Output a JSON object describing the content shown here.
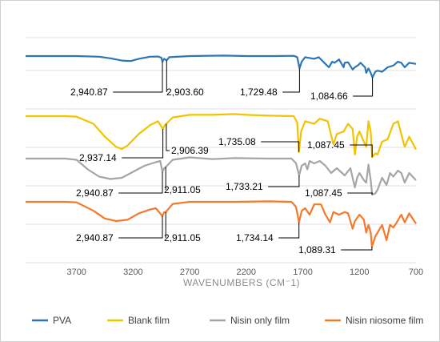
{
  "chart_data": {
    "type": "line",
    "xlabel": "WAVENUMBERS (CM⁻1)",
    "ylabel": "",
    "xlim": [
      4150,
      700
    ],
    "x_reversed": true,
    "x_ticks": [
      3700,
      3200,
      2700,
      2200,
      1700,
      1200,
      700
    ],
    "grid": "horizontal",
    "legend_position": "bottom",
    "series": [
      {
        "name": "PVA",
        "color": "#2E75B6",
        "points": [
          [
            4150,
            0
          ],
          [
            3700,
            0
          ],
          [
            3500,
            0.03
          ],
          [
            3400,
            0.1
          ],
          [
            3300,
            0.2
          ],
          [
            3220,
            0.22
          ],
          [
            3150,
            0.12
          ],
          [
            3050,
            0.03
          ],
          [
            2980,
            0.02
          ],
          [
            2950,
            0.07
          ],
          [
            2940.87,
            0.25
          ],
          [
            2925,
            0.12
          ],
          [
            2903.6,
            0.19
          ],
          [
            2880,
            0.05
          ],
          [
            2700,
            0.0
          ],
          [
            2400,
            -0.02
          ],
          [
            2200,
            0.0
          ],
          [
            1950,
            0.0
          ],
          [
            1780,
            -0.01
          ],
          [
            1750,
            0.05
          ],
          [
            1729.48,
            0.55
          ],
          [
            1710,
            0.25
          ],
          [
            1680,
            0.05
          ],
          [
            1600,
            0.12
          ],
          [
            1560,
            0.05
          ],
          [
            1500,
            0.35
          ],
          [
            1470,
            0.5
          ],
          [
            1440,
            0.25
          ],
          [
            1420,
            0.3
          ],
          [
            1380,
            0.15
          ],
          [
            1340,
            0.5
          ],
          [
            1330,
            0.3
          ],
          [
            1300,
            0.28
          ],
          [
            1260,
            0.6
          ],
          [
            1240,
            0.5
          ],
          [
            1210,
            0.4
          ],
          [
            1190,
            0.3
          ],
          [
            1150,
            0.5
          ],
          [
            1140,
            0.75
          ],
          [
            1120,
            0.55
          ],
          [
            1100,
            0.75
          ],
          [
            1084.66,
            0.95
          ],
          [
            1060,
            0.7
          ],
          [
            1040,
            0.65
          ],
          [
            1000,
            0.7
          ],
          [
            950,
            0.5
          ],
          [
            900,
            0.42
          ],
          [
            860,
            0.25
          ],
          [
            830,
            0.3
          ],
          [
            800,
            0.5
          ],
          [
            760,
            0.3
          ],
          [
            700,
            0.35
          ]
        ],
        "annotations": [
          {
            "text": "2,940.87",
            "x": 2940.87
          },
          {
            "text": "2,903.60",
            "x": 2903.6
          },
          {
            "text": "1,729.48",
            "x": 1729.48
          },
          {
            "text": "1,084.66",
            "x": 1084.66
          }
        ]
      },
      {
        "name": "Blank film",
        "color": "#F2C300",
        "points": [
          [
            4150,
            0
          ],
          [
            3800,
            0
          ],
          [
            3700,
            0.02
          ],
          [
            3550,
            0.3
          ],
          [
            3450,
            0.8
          ],
          [
            3350,
            1.2
          ],
          [
            3300,
            1.28
          ],
          [
            3250,
            1.15
          ],
          [
            3150,
            0.7
          ],
          [
            3050,
            0.35
          ],
          [
            2980,
            0.2
          ],
          [
            2937.14,
            0.5
          ],
          [
            2920,
            0.35
          ],
          [
            2906.39,
            0.3
          ],
          [
            2850,
            0.05
          ],
          [
            2700,
            -0.05
          ],
          [
            2500,
            -0.05
          ],
          [
            2300,
            -0.08
          ],
          [
            2200,
            -0.05
          ],
          [
            2000,
            -0.02
          ],
          [
            1780,
            0.0
          ],
          [
            1750,
            0.25
          ],
          [
            1735.08,
            1.4
          ],
          [
            1715,
            0.6
          ],
          [
            1680,
            0.2
          ],
          [
            1600,
            0.3
          ],
          [
            1550,
            0.1
          ],
          [
            1480,
            0.2
          ],
          [
            1430,
            1.1
          ],
          [
            1400,
            0.7
          ],
          [
            1340,
            0.6
          ],
          [
            1300,
            0.3
          ],
          [
            1260,
            0.5
          ],
          [
            1240,
            1.5
          ],
          [
            1220,
            0.8
          ],
          [
            1200,
            0.6
          ],
          [
            1160,
            1.0
          ],
          [
            1140,
            1.2
          ],
          [
            1120,
            0.2
          ],
          [
            1100,
            0.6
          ],
          [
            1087.45,
            1.6
          ],
          [
            1060,
            1.45
          ],
          [
            1040,
            1.5
          ],
          [
            1000,
            1.0
          ],
          [
            950,
            0.9
          ],
          [
            900,
            0.3
          ],
          [
            860,
            0.2
          ],
          [
            830,
            0.7
          ],
          [
            800,
            1.2
          ],
          [
            760,
            0.8
          ],
          [
            700,
            1.3
          ]
        ],
        "annotations": [
          {
            "text": "2,937.14",
            "x": 2937.14
          },
          {
            "text": "2,906.39",
            "x": 2906.39
          },
          {
            "text": "1,735.08",
            "x": 1735.08
          },
          {
            "text": "1,087.45",
            "x": 1087.45
          }
        ]
      },
      {
        "name": "Nisin only film",
        "color": "#A5A5A5",
        "points": [
          [
            4150,
            0
          ],
          [
            3800,
            0
          ],
          [
            3700,
            0.05
          ],
          [
            3600,
            0.45
          ],
          [
            3500,
            0.75
          ],
          [
            3400,
            0.85
          ],
          [
            3300,
            0.8
          ],
          [
            3200,
            0.55
          ],
          [
            3100,
            0.3
          ],
          [
            3000,
            0.15
          ],
          [
            2960,
            0.1
          ],
          [
            2940.87,
            0.55
          ],
          [
            2925,
            0.4
          ],
          [
            2911.05,
            0.35
          ],
          [
            2850,
            0.05
          ],
          [
            2700,
            -0.05
          ],
          [
            2500,
            0.02
          ],
          [
            2300,
            -0.02
          ],
          [
            2000,
            0.0
          ],
          [
            1800,
            0.0
          ],
          [
            1760,
            0.2
          ],
          [
            1733.21,
            0.7
          ],
          [
            1710,
            0.3
          ],
          [
            1680,
            0.2
          ],
          [
            1660,
            0.45
          ],
          [
            1640,
            0.1
          ],
          [
            1600,
            0.2
          ],
          [
            1550,
            0.1
          ],
          [
            1500,
            0.3
          ],
          [
            1450,
            0.6
          ],
          [
            1400,
            0.4
          ],
          [
            1330,
            0.7
          ],
          [
            1280,
            0.4
          ],
          [
            1240,
            1.2
          ],
          [
            1220,
            0.8
          ],
          [
            1200,
            0.6
          ],
          [
            1160,
            0.9
          ],
          [
            1140,
            1.0
          ],
          [
            1120,
            0.25
          ],
          [
            1100,
            0.9
          ],
          [
            1087.45,
            1.5
          ],
          [
            1060,
            1.45
          ],
          [
            1040,
            1.3
          ],
          [
            1000,
            0.8
          ],
          [
            960,
            1.1
          ],
          [
            930,
            0.6
          ],
          [
            900,
            0.75
          ],
          [
            860,
            0.5
          ],
          [
            830,
            0.6
          ],
          [
            800,
            1.0
          ],
          [
            760,
            0.6
          ],
          [
            700,
            0.9
          ]
        ],
        "annotations": [
          {
            "text": "2,940.87",
            "x": 2940.87
          },
          {
            "text": "2,911.05",
            "x": 2911.05
          },
          {
            "text": "1,733.21",
            "x": 1733.21
          },
          {
            "text": "1,087.45",
            "x": 1087.45
          }
        ]
      },
      {
        "name": "Nisin niosome film",
        "color": "#F4792B",
        "points": [
          [
            4150,
            0
          ],
          [
            3800,
            0
          ],
          [
            3700,
            0.02
          ],
          [
            3550,
            0.35
          ],
          [
            3450,
            0.65
          ],
          [
            3350,
            0.75
          ],
          [
            3250,
            0.7
          ],
          [
            3150,
            0.45
          ],
          [
            3050,
            0.3
          ],
          [
            3000,
            0.25
          ],
          [
            2940.87,
            0.55
          ],
          [
            2925,
            0.4
          ],
          [
            2911.05,
            0.4
          ],
          [
            2850,
            0.08
          ],
          [
            2700,
            0.0
          ],
          [
            2500,
            0.0
          ],
          [
            2300,
            0.0
          ],
          [
            2000,
            -0.02
          ],
          [
            1800,
            0.0
          ],
          [
            1760,
            0.2
          ],
          [
            1734.14,
            0.8
          ],
          [
            1710,
            0.35
          ],
          [
            1680,
            0.25
          ],
          [
            1640,
            0.5
          ],
          [
            1600,
            0.1
          ],
          [
            1540,
            0.1
          ],
          [
            1500,
            0.5
          ],
          [
            1460,
            0.8
          ],
          [
            1430,
            0.4
          ],
          [
            1380,
            0.5
          ],
          [
            1330,
            0.4
          ],
          [
            1300,
            0.45
          ],
          [
            1260,
            1.05
          ],
          [
            1240,
            0.75
          ],
          [
            1200,
            0.5
          ],
          [
            1160,
            0.7
          ],
          [
            1140,
            1.2
          ],
          [
            1120,
            0.9
          ],
          [
            1100,
            1.2
          ],
          [
            1089.31,
            1.75
          ],
          [
            1060,
            1.35
          ],
          [
            1040,
            1.2
          ],
          [
            1000,
            0.9
          ],
          [
            960,
            1.5
          ],
          [
            930,
            0.9
          ],
          [
            900,
            1.0
          ],
          [
            870,
            0.8
          ],
          [
            830,
            0.5
          ],
          [
            800,
            0.8
          ],
          [
            760,
            0.45
          ],
          [
            700,
            0.85
          ]
        ],
        "annotations": [
          {
            "text": "2,940.87",
            "x": 2940.87
          },
          {
            "text": "2,911.05",
            "x": 2911.05
          },
          {
            "text": "1,734.14",
            "x": 1734.14
          },
          {
            "text": "1,089.31",
            "x": 1089.31
          }
        ]
      }
    ]
  }
}
